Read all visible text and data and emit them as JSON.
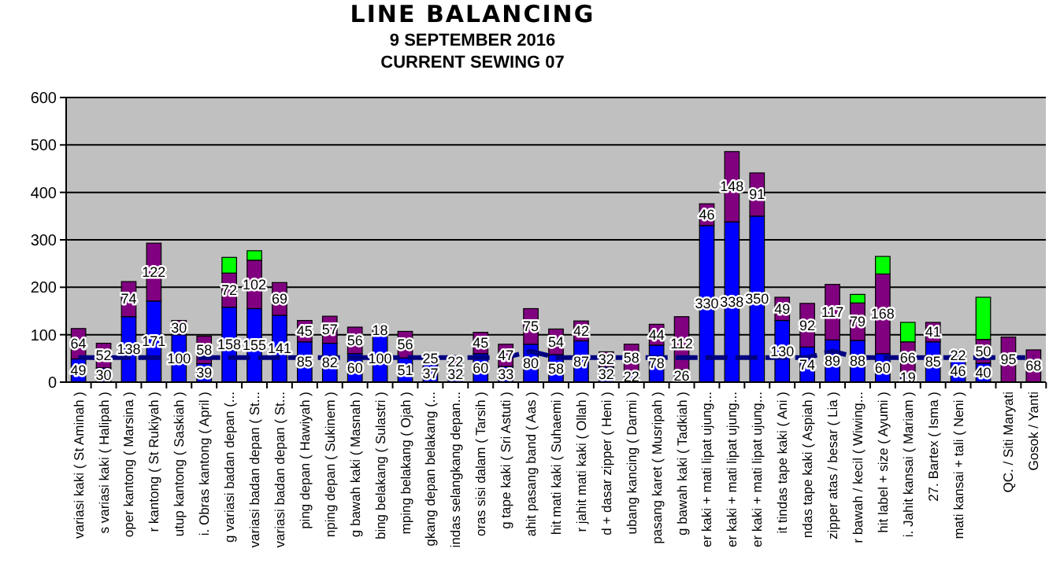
{
  "chart_data": {
    "type": "bar",
    "title": "LINE BALANCING",
    "subtitle": "9 SEPTEMBER  2016",
    "annotations": [
      "CURRENT  SEWING  07"
    ],
    "categories": [
      "variasi kaki ( St Aminah )",
      "s variasi kaki ( Halipah )",
      "oper kantong ( Marsina )",
      "r kantong ( St Rukiyah )",
      "utup kantong ( Saskiah )",
      "i. Obras kantong ( April )",
      "g variasi badan depan (...",
      "variasi badan depan ( St...",
      "variasi badan depan ( St...",
      "ping depan ( Hawiyah )",
      "nping depan ( Sukinem )",
      "g bawah kaki ( Masnah )",
      "bing belakang ( Sulastri )",
      "mping belakang ( Ojah )",
      "gkang depan belakang (...",
      "indas selangkang depan...",
      "oras sisi dalam ( Tarsih )",
      "g tape kaki ( Sri Astuti )",
      "ahit pasang band ( Aas )",
      "hit mati kaki ( Suhaemi )",
      "r jahit mati kaki ( Ollah )",
      "d + dasar zipper ( Heni )",
      "ubang kancing ( Darmi )",
      "pasang karet ( Musripah )",
      "g bawah kaki ( Tadkiah )",
      "er kaki + mati lipat ujung...",
      "er kaki + mati lipat ujung...",
      "er kaki + mati lipat ujung...",
      "it tindas tape kaki ( Ani )",
      "ndas tape kaki ( Aspiah )",
      "zipper atas / besar ( Lia )",
      "r bawah / kecil ( Wiwing...",
      "hit label + size ( Ayumi )",
      "i. Jahit kansai ( Mariam )",
      "27. Bartex ( Isma )",
      "mati kansai + tali ( Neni )",
      null,
      "QC. / Siti Maryati",
      "Gosok / Yanti"
    ],
    "stacked": true,
    "ylim": [
      0,
      600
    ],
    "yticks": [
      0,
      100,
      200,
      300,
      400,
      500,
      600
    ],
    "grid": "y",
    "series": [
      {
        "color": "#0000ff",
        "values": [
          49,
          30,
          138,
          171,
          100,
          39,
          158,
          155,
          141,
          85,
          82,
          60,
          100,
          51,
          37,
          32,
          60,
          33,
          80,
          58,
          87,
          32,
          22,
          78,
          26,
          330,
          338,
          350,
          130,
          74,
          89,
          88,
          60,
          19,
          85,
          46,
          40,
          null,
          null
        ],
        "value_labels": [
          "49",
          "30",
          "138",
          "171",
          "100",
          "39",
          "158",
          "155",
          "141",
          "85",
          "82",
          "60",
          "100",
          "51",
          "37",
          "32",
          "60",
          "33",
          "80",
          "58",
          "87",
          "32",
          "22",
          "78",
          "26",
          "330",
          "338",
          "350",
          "130",
          "74",
          "89",
          "88",
          "60",
          "19",
          "85",
          "46",
          "40",
          null,
          null
        ]
      },
      {
        "color": "#800080",
        "values": [
          64,
          52,
          74,
          122,
          30,
          58,
          72,
          102,
          69,
          45,
          57,
          56,
          18,
          56,
          25,
          22,
          45,
          47,
          75,
          54,
          42,
          32,
          58,
          44,
          112,
          46,
          148,
          91,
          49,
          92,
          117,
          79,
          168,
          66,
          41,
          22,
          50,
          95,
          68
        ],
        "value_labels": [
          "64",
          "52",
          "74",
          "122",
          "30",
          "58",
          "72",
          "102",
          "69",
          "45",
          "57",
          "56",
          "18",
          "56",
          "25",
          "22",
          "45",
          "47",
          "75",
          "54",
          "42",
          "32",
          "58",
          "44",
          "112",
          "46",
          "148",
          "91",
          "49",
          "92",
          "117",
          "79",
          "168",
          "66",
          "41",
          "22",
          "50",
          "95",
          "68"
        ]
      },
      {
        "color": "#00ff00",
        "values": [
          null,
          null,
          null,
          null,
          null,
          null,
          33,
          20,
          null,
          null,
          null,
          null,
          null,
          null,
          null,
          null,
          null,
          null,
          null,
          null,
          null,
          null,
          null,
          null,
          null,
          null,
          null,
          null,
          null,
          null,
          null,
          18,
          37,
          41,
          null,
          null,
          89,
          null,
          null
        ]
      },
      {
        "type": "line",
        "color": "#000080",
        "line_style": "dashed",
        "values": [
          52,
          52,
          52,
          52,
          52,
          52,
          52,
          52,
          52,
          52,
          52,
          52,
          52,
          52,
          52,
          52,
          52,
          52,
          65,
          52,
          52,
          52,
          52,
          52,
          52,
          52,
          52,
          52,
          52,
          52,
          65,
          52,
          52,
          52,
          52,
          52,
          52,
          52,
          52
        ]
      }
    ]
  }
}
